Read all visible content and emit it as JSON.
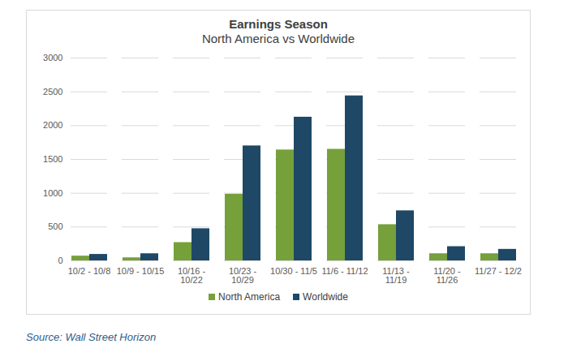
{
  "chart_data": {
    "type": "bar",
    "title": "Earnings Season",
    "subtitle": "North America vs Worldwide",
    "source": "Source: Wall Street Horizon",
    "categories": [
      "10/2 - 10/8",
      "10/9 - 10/15",
      "10/16 - 10/22",
      "10/23 - 10/29",
      "10/30 - 11/5",
      "11/6 - 11/12",
      "11/13 - 11/19",
      "11/20 - 11/26",
      "11/27 - 12/2"
    ],
    "series": [
      {
        "name": "North America",
        "color": "#76a03a",
        "values": [
          70,
          45,
          270,
          985,
          1640,
          1650,
          535,
          105,
          105
        ]
      },
      {
        "name": "Worldwide",
        "color": "#1e4866",
        "values": [
          95,
          105,
          475,
          1700,
          2125,
          2440,
          740,
          210,
          170
        ]
      }
    ],
    "ylim": [
      0,
      3000
    ],
    "yticks": [
      0,
      500,
      1000,
      1500,
      2000,
      2500,
      3000
    ],
    "grid": true,
    "legend": "bottom"
  }
}
